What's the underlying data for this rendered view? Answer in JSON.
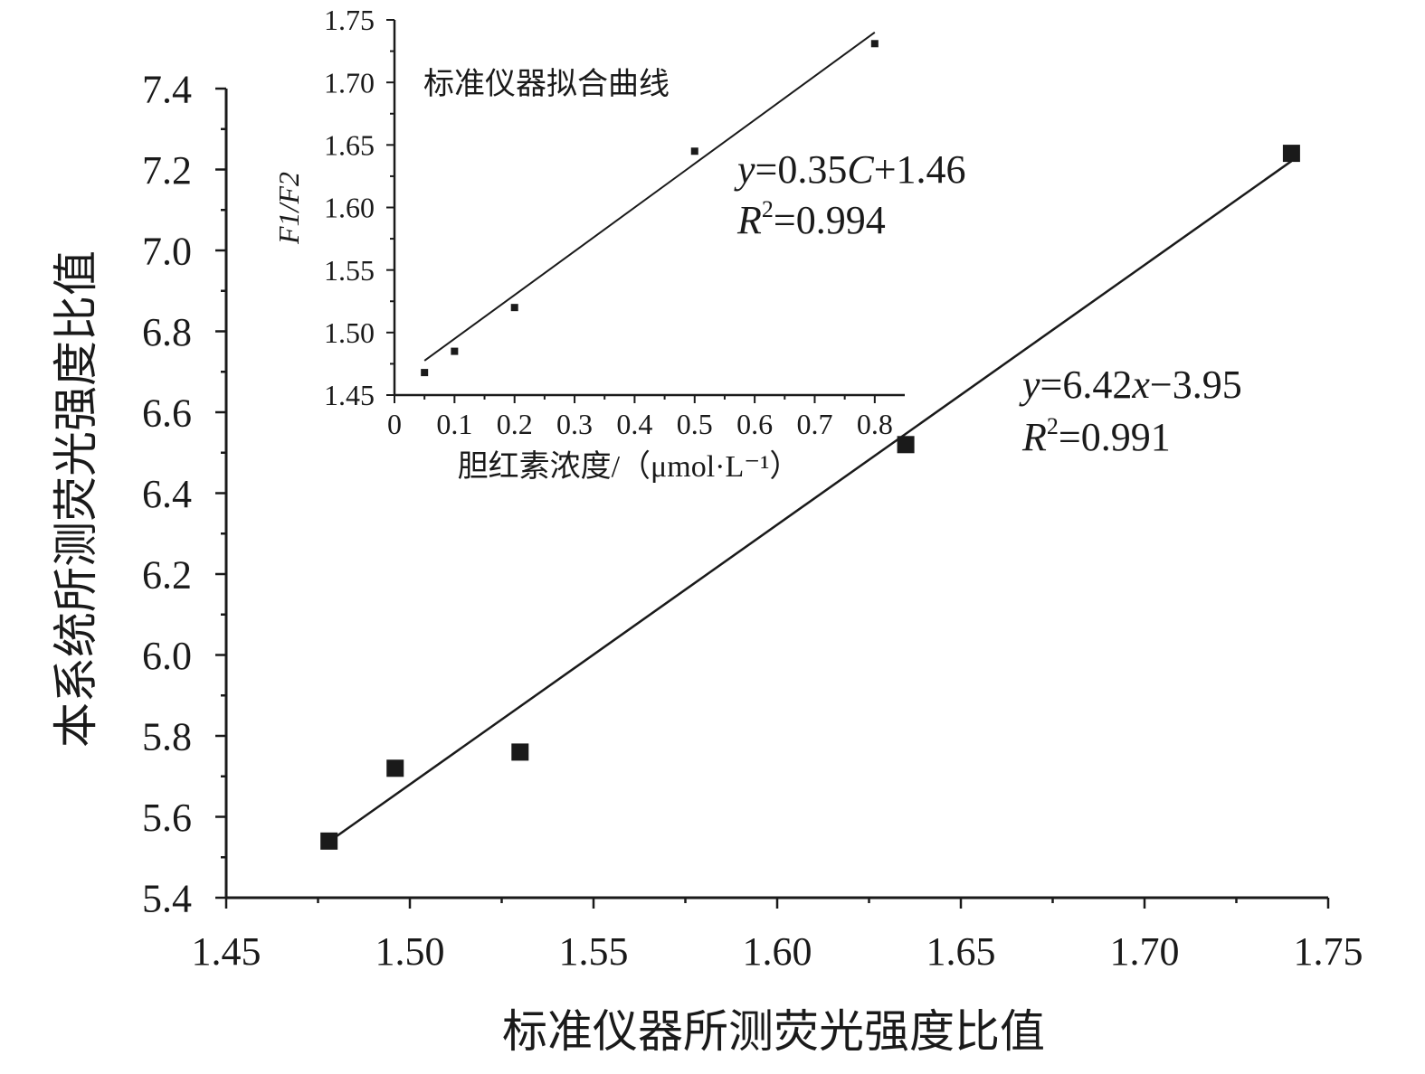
{
  "chart_data": [
    {
      "id": "main",
      "type": "scatter",
      "title": "",
      "xlabel": "标准仪器所测荧光强度比值",
      "ylabel": "本系统所测荧光强度比值",
      "xlim": [
        1.45,
        1.75
      ],
      "ylim": [
        5.4,
        7.4
      ],
      "x_ticks": [
        "1.45",
        "1.50",
        "1.55",
        "1.60",
        "1.65",
        "1.70",
        "1.75"
      ],
      "y_ticks": [
        "5.4",
        "5.6",
        "5.8",
        "6.0",
        "6.2",
        "6.4",
        "6.6",
        "6.8",
        "7.0",
        "7.2",
        "7.4"
      ],
      "grid": false,
      "points": [
        {
          "x": 1.478,
          "y": 5.54
        },
        {
          "x": 1.496,
          "y": 5.72
        },
        {
          "x": 1.53,
          "y": 5.76
        },
        {
          "x": 1.635,
          "y": 6.52
        },
        {
          "x": 1.74,
          "y": 7.24
        }
      ],
      "fit": {
        "slope": 6.42,
        "intercept": -3.95,
        "x_range": [
          1.478,
          1.74
        ]
      },
      "annotations": {
        "equation": {
          "pre": "y",
          "body": "=6.42",
          "var": "x",
          "post": "−3.95"
        },
        "r2": {
          "sym": "R",
          "sup": "2",
          "value": "=0.991"
        }
      }
    },
    {
      "id": "inset",
      "type": "scatter",
      "title": "标准仪器拟合曲线",
      "xlabel": "胆红素浓度/（μmol·L⁻¹）",
      "ylabel": "F1/F2",
      "xlim": [
        0,
        0.85
      ],
      "ylim": [
        1.45,
        1.75
      ],
      "x_ticks": [
        "0",
        "0.1",
        "0.2",
        "0.3",
        "0.4",
        "0.5",
        "0.6",
        "0.7",
        "0.8"
      ],
      "y_ticks": [
        "1.45",
        "1.50",
        "1.55",
        "1.60",
        "1.65",
        "1.70",
        "1.75"
      ],
      "grid": false,
      "points": [
        {
          "x": 0.05,
          "y": 1.468
        },
        {
          "x": 0.1,
          "y": 1.485
        },
        {
          "x": 0.2,
          "y": 1.52
        },
        {
          "x": 0.5,
          "y": 1.645
        },
        {
          "x": 0.8,
          "y": 1.731
        }
      ],
      "fit": {
        "slope": 0.35,
        "intercept": 1.46,
        "x_range": [
          0.05,
          0.8
        ]
      },
      "annotations": {
        "equation": {
          "pre": "y",
          "body": "=0.35",
          "var": "C",
          "post": "+1.46"
        },
        "r2": {
          "sym": "R",
          "sup": "2",
          "value": "=0.994"
        }
      }
    }
  ]
}
